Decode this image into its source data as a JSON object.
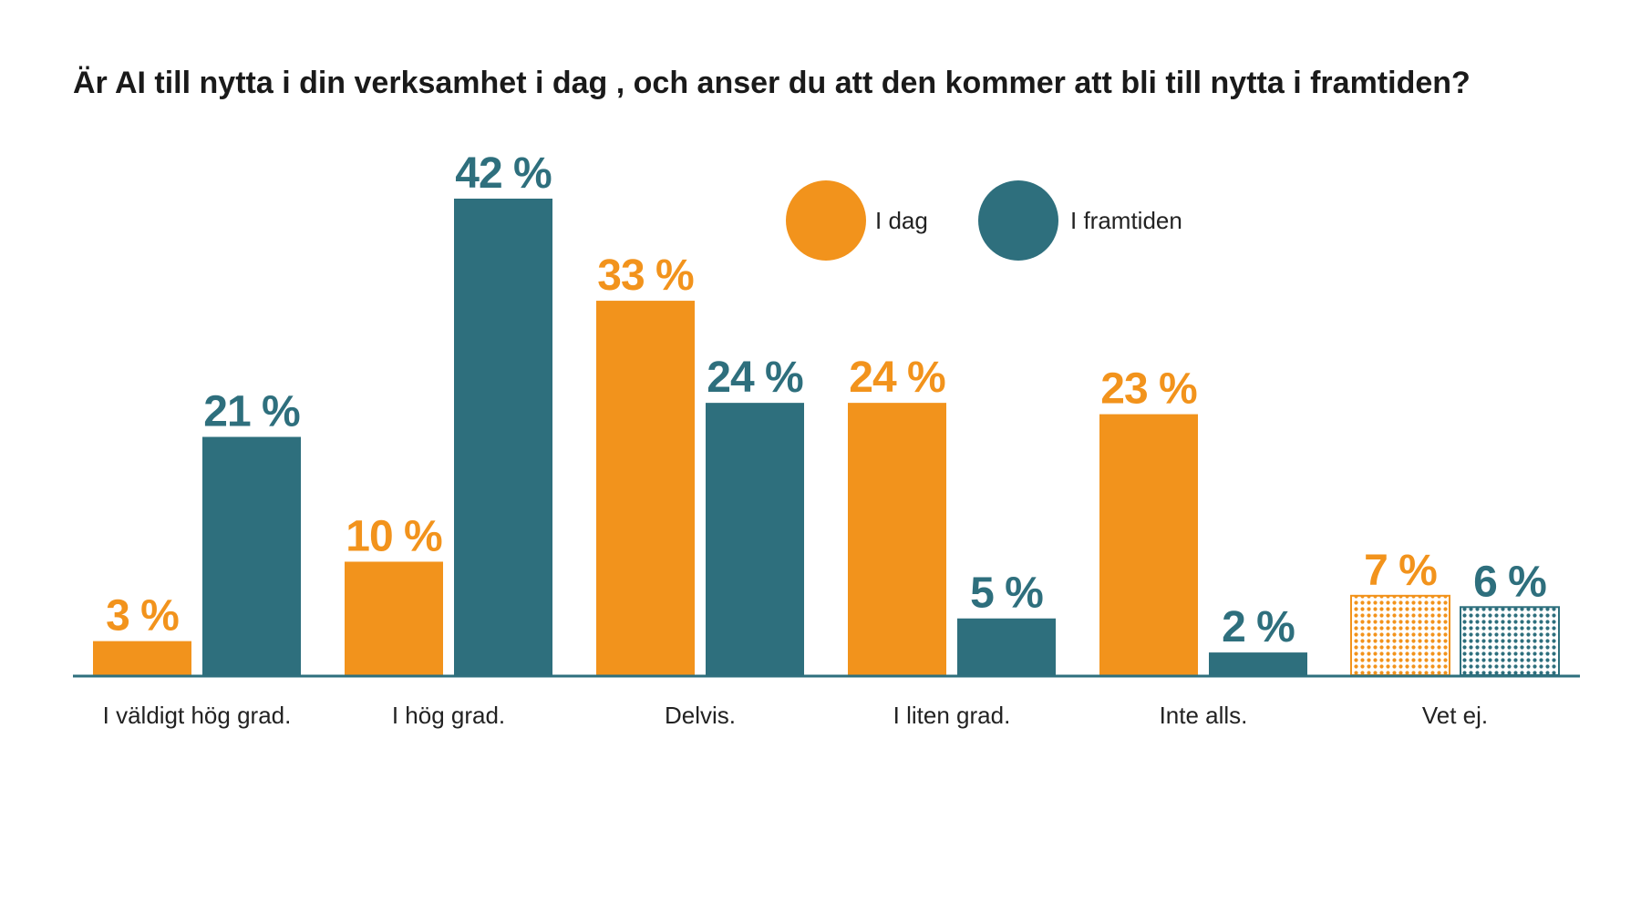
{
  "chart_data": {
    "type": "bar",
    "title": "Är AI till nytta i din verksamhet i dag , och anser du att den kommer att bli till nytta i framtiden?",
    "xlabel": "",
    "ylabel": "",
    "ylim": [
      0,
      42
    ],
    "categories": [
      "I väldigt hög grad.",
      "I hög grad.",
      "Delvis.",
      "I liten grad.",
      "Inte alls.",
      "Vet ej."
    ],
    "series": [
      {
        "name": "I dag",
        "values": [
          3,
          10,
          33,
          24,
          23,
          7
        ],
        "labels": [
          "3 %",
          "10 %",
          "33 %",
          "24 %",
          "23 %",
          "7 %"
        ],
        "color": "#f2931c"
      },
      {
        "name": "I framtiden",
        "values": [
          21,
          42,
          24,
          5,
          2,
          6
        ],
        "labels": [
          "21 %",
          "42 %",
          "24 %",
          "5 %",
          "2 %",
          "6 %"
        ],
        "color": "#2e6f7d"
      }
    ],
    "patterned_category": "Vet ej.",
    "legend": "top-center",
    "grid": false
  }
}
